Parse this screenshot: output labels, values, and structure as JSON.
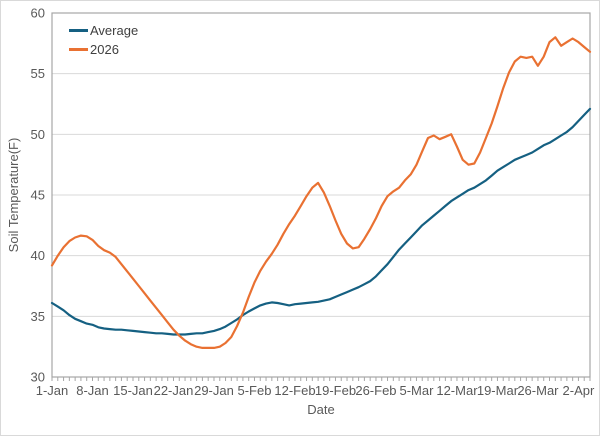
{
  "chart": {
    "legend": [
      {
        "label": "Average",
        "color": "#156082"
      },
      {
        "label": "2026",
        "color": "#E97132"
      }
    ],
    "y_axis": {
      "title": "Soil Temperature(F)",
      "ticks": [
        30,
        35,
        40,
        45,
        50,
        55,
        60
      ]
    },
    "x_axis": {
      "title": "Date",
      "tick_labels": [
        "1-Jan",
        "8-Jan",
        "15-Jan",
        "22-Jan",
        "29-Jan",
        "5-Feb",
        "12-Feb",
        "19-Feb",
        "26-Feb",
        "5-Mar",
        "12-Mar",
        "19-Mar",
        "26-Mar",
        "2-Apr"
      ],
      "tick_interval_days": 7
    },
    "colors": {
      "grid": "#D9D9D9",
      "axis": "#A6A6A6",
      "text": "#595959",
      "background": "#FFFFFF",
      "chart_border": "#D9D9D9"
    }
  },
  "chart_data": {
    "type": "line",
    "title": "",
    "xlabel": "Date",
    "ylabel": "Soil Temperature(F)",
    "ylim": [
      30,
      60
    ],
    "x_start": "1-Jan",
    "x_end": "4-Apr",
    "x_unit": "day",
    "legend_position": "top-left-inside",
    "grid": "horizontal",
    "series": [
      {
        "name": "Average",
        "color": "#156082",
        "values": [
          36.1,
          35.8,
          35.5,
          35.1,
          34.8,
          34.6,
          34.4,
          34.3,
          34.1,
          34.0,
          33.95,
          33.9,
          33.9,
          33.85,
          33.8,
          33.75,
          33.7,
          33.65,
          33.6,
          33.6,
          33.55,
          33.5,
          33.5,
          33.5,
          33.55,
          33.6,
          33.6,
          33.7,
          33.8,
          33.95,
          34.15,
          34.45,
          34.75,
          35.1,
          35.4,
          35.65,
          35.9,
          36.05,
          36.15,
          36.1,
          36.0,
          35.9,
          36.0,
          36.05,
          36.1,
          36.15,
          36.2,
          36.3,
          36.4,
          36.6,
          36.8,
          37.0,
          37.2,
          37.4,
          37.65,
          37.9,
          38.3,
          38.8,
          39.3,
          39.9,
          40.5,
          41.0,
          41.5,
          42.0,
          42.5,
          42.9,
          43.3,
          43.7,
          44.1,
          44.5,
          44.8,
          45.1,
          45.4,
          45.6,
          45.9,
          46.2,
          46.6,
          47.0,
          47.3,
          47.6,
          47.9,
          48.1,
          48.3,
          48.5,
          48.8,
          49.1,
          49.3,
          49.6,
          49.9,
          50.2,
          50.6,
          51.1,
          51.6,
          52.1
        ]
      },
      {
        "name": "2026",
        "color": "#E97132",
        "values": [
          39.2,
          40.0,
          40.7,
          41.2,
          41.5,
          41.65,
          41.6,
          41.3,
          40.8,
          40.45,
          40.25,
          39.9,
          39.3,
          38.7,
          38.1,
          37.5,
          36.9,
          36.3,
          35.7,
          35.1,
          34.5,
          33.9,
          33.4,
          33.0,
          32.7,
          32.5,
          32.4,
          32.4,
          32.4,
          32.5,
          32.8,
          33.3,
          34.2,
          35.3,
          36.6,
          37.8,
          38.75,
          39.5,
          40.15,
          40.9,
          41.8,
          42.6,
          43.3,
          44.1,
          44.9,
          45.6,
          46.0,
          45.2,
          44.1,
          42.9,
          41.8,
          41.0,
          40.6,
          40.7,
          41.4,
          42.2,
          43.1,
          44.1,
          44.9,
          45.3,
          45.6,
          46.2,
          46.7,
          47.5,
          48.6,
          49.7,
          49.9,
          49.6,
          49.8,
          50.0,
          49.0,
          47.9,
          47.5,
          47.6,
          48.5,
          49.7,
          50.9,
          52.3,
          53.8,
          55.1,
          56.0,
          56.4,
          56.3,
          56.4,
          55.65,
          56.4,
          57.6,
          58.0,
          57.3,
          57.6,
          57.9,
          57.6,
          57.2,
          56.8
        ]
      }
    ]
  }
}
